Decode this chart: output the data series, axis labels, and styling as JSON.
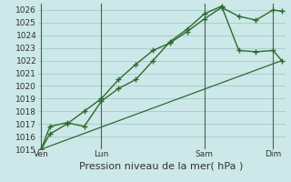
{
  "xlabel": "Pression niveau de la mer( hPa )",
  "background_color": "#cce8e8",
  "grid_color": "#aacece",
  "line_color": "#2d6a2d",
  "vline_color": "#446644",
  "ylim": [
    1015,
    1026.5
  ],
  "yticks": [
    1015,
    1016,
    1017,
    1018,
    1019,
    1020,
    1021,
    1022,
    1023,
    1024,
    1025,
    1026
  ],
  "day_labels": [
    "Ven",
    "Lun",
    "Sam",
    "Dim"
  ],
  "day_positions": [
    0,
    3.5,
    9.5,
    13.5
  ],
  "xlim": [
    -0.2,
    14.2
  ],
  "series1": {
    "x": [
      0,
      0.5,
      1.5,
      2.5,
      3.5,
      4.5,
      5.5,
      6.5,
      7.5,
      8.5,
      9.5,
      10.5,
      11.5,
      12.5,
      13.5,
      14
    ],
    "y": [
      1015.0,
      1016.2,
      1017.0,
      1018.0,
      1019.0,
      1020.5,
      1021.7,
      1022.8,
      1023.4,
      1024.3,
      1025.3,
      1026.2,
      1025.5,
      1025.2,
      1026.0,
      1025.9
    ]
  },
  "series2": {
    "x": [
      0,
      0.5,
      1.5,
      2.5,
      3.5,
      4.5,
      5.5,
      6.5,
      7.5,
      8.5,
      9.5,
      10.5,
      11.5,
      12.5,
      13.5,
      14
    ],
    "y": [
      1015.0,
      1016.8,
      1017.1,
      1016.8,
      1018.8,
      1019.8,
      1020.5,
      1022.0,
      1023.5,
      1024.5,
      1025.7,
      1026.3,
      1022.8,
      1022.7,
      1022.8,
      1022.0
    ]
  },
  "series3": {
    "x": [
      0,
      14
    ],
    "y": [
      1015.0,
      1022.0
    ]
  },
  "xlabel_fontsize": 8,
  "tick_fontsize": 6.5
}
